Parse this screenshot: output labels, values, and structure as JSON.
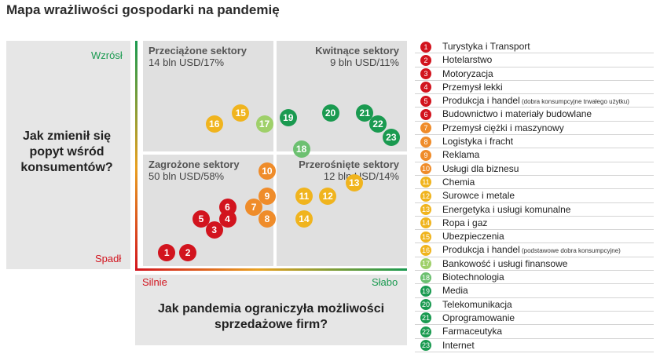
{
  "title": "Mapa wrażliwości gospodarki na pandemię",
  "colors": {
    "bg_grey": "#e6e6e6",
    "quadrant_grey": "#e0e0e0",
    "red": "#d2141e",
    "orange": "#ef8c2a",
    "yellow": "#f0b41e",
    "light_green": "#9fd06a",
    "green": "#1a9a50"
  },
  "chart_data": {
    "type": "scatter",
    "title": "Mapa wrażliwości gospodarki na pandemię",
    "ylabel": "Jak zmienił się popyt wśród konsumentów?",
    "xlabel": "Jak pandemia ograniczyła możliwości sprzedażowe firm?",
    "y_axis": {
      "high": "Wzrósł",
      "low": "Spadł"
    },
    "x_axis": {
      "low": "Silnie",
      "high": "Słabo"
    },
    "xlim": [
      0,
      100
    ],
    "ylim": [
      0,
      100
    ],
    "quadrants": [
      {
        "key": "tl",
        "title": "Przeciążone sektory",
        "value": "14 bln USD/17%"
      },
      {
        "key": "tr",
        "title": "Kwitnące sektory",
        "value": "9 bln USD/11%"
      },
      {
        "key": "bl",
        "title": "Zagrożone sektory",
        "value": "50 bln USD/58%"
      },
      {
        "key": "br",
        "title": "Przerośnięte sektory",
        "value": "12 bln USD/14%"
      }
    ],
    "points": [
      {
        "id": "1",
        "x": 9,
        "y": 6,
        "color": "#d2141e"
      },
      {
        "id": "2",
        "x": 17,
        "y": 6,
        "color": "#d2141e"
      },
      {
        "id": "3",
        "x": 27,
        "y": 16,
        "color": "#d2141e"
      },
      {
        "id": "4",
        "x": 32,
        "y": 21,
        "color": "#d2141e"
      },
      {
        "id": "5",
        "x": 22,
        "y": 21,
        "color": "#d2141e"
      },
      {
        "id": "6",
        "x": 32,
        "y": 26,
        "color": "#d2141e"
      },
      {
        "id": "7",
        "x": 42,
        "y": 26,
        "color": "#ef8c2a"
      },
      {
        "id": "8",
        "x": 47,
        "y": 21,
        "color": "#ef8c2a"
      },
      {
        "id": "9",
        "x": 47,
        "y": 31,
        "color": "#ef8c2a"
      },
      {
        "id": "10",
        "x": 47,
        "y": 42,
        "color": "#ef8c2a"
      },
      {
        "id": "11",
        "x": 61,
        "y": 31,
        "color": "#f0b41e"
      },
      {
        "id": "12",
        "x": 70,
        "y": 31,
        "color": "#f0b41e"
      },
      {
        "id": "13",
        "x": 80,
        "y": 37,
        "color": "#f0b41e"
      },
      {
        "id": "14",
        "x": 61,
        "y": 21,
        "color": "#f0b41e"
      },
      {
        "id": "15",
        "x": 37,
        "y": 68,
        "color": "#f0b41e"
      },
      {
        "id": "16",
        "x": 27,
        "y": 63,
        "color": "#f0b41e"
      },
      {
        "id": "17",
        "x": 46,
        "y": 63,
        "color": "#9fd06a"
      },
      {
        "id": "18",
        "x": 60,
        "y": 52,
        "color": "#6cc070"
      },
      {
        "id": "19",
        "x": 55,
        "y": 66,
        "color": "#1a9a50"
      },
      {
        "id": "20",
        "x": 71,
        "y": 68,
        "color": "#1a9a50"
      },
      {
        "id": "21",
        "x": 84,
        "y": 68,
        "color": "#1a9a50"
      },
      {
        "id": "22",
        "x": 89,
        "y": 63,
        "color": "#1a9a50"
      },
      {
        "id": "23",
        "x": 94,
        "y": 57,
        "color": "#1a9a50"
      }
    ]
  },
  "legend": [
    {
      "num": "1",
      "label": "Turystyka i Transport",
      "note": "",
      "color": "#d2141e"
    },
    {
      "num": "2",
      "label": "Hotelarstwo",
      "note": "",
      "color": "#d2141e"
    },
    {
      "num": "3",
      "label": "Motoryzacja",
      "note": "",
      "color": "#d2141e"
    },
    {
      "num": "4",
      "label": "Przemysł lekki",
      "note": "",
      "color": "#d2141e"
    },
    {
      "num": "5",
      "label": "Produkcja i handel",
      "note": "(dobra konsumpcyjne trwałego użytku)",
      "color": "#d2141e"
    },
    {
      "num": "6",
      "label": "Budownictwo i materiały budowlane",
      "note": "",
      "color": "#d2141e"
    },
    {
      "num": "7",
      "label": "Przemysł ciężki i maszynowy",
      "note": "",
      "color": "#ef8c2a"
    },
    {
      "num": "8",
      "label": "Logistyka i fracht",
      "note": "",
      "color": "#ef8c2a"
    },
    {
      "num": "9",
      "label": "Reklama",
      "note": "",
      "color": "#ef8c2a"
    },
    {
      "num": "10",
      "label": "Usługi dla biznesu",
      "note": "",
      "color": "#ef8c2a"
    },
    {
      "num": "11",
      "label": "Chemia",
      "note": "",
      "color": "#f0b41e"
    },
    {
      "num": "12",
      "label": "Surowce i metale",
      "note": "",
      "color": "#f0b41e"
    },
    {
      "num": "13",
      "label": "Energetyka i usługi komunalne",
      "note": "",
      "color": "#f0b41e"
    },
    {
      "num": "14",
      "label": "Ropa i gaz",
      "note": "",
      "color": "#f0b41e"
    },
    {
      "num": "15",
      "label": "Ubezpieczenia",
      "note": "",
      "color": "#f0b41e"
    },
    {
      "num": "16",
      "label": "Produkcja i handel",
      "note": "(podstawowe dobra konsumpcyjne)",
      "color": "#f0b41e"
    },
    {
      "num": "17",
      "label": "Bankowość i usługi finansowe",
      "note": "",
      "color": "#9fd06a"
    },
    {
      "num": "18",
      "label": "Biotechnologia",
      "note": "",
      "color": "#6cc070"
    },
    {
      "num": "19",
      "label": "Media",
      "note": "",
      "color": "#1a9a50"
    },
    {
      "num": "20",
      "label": "Telekomunikacja",
      "note": "",
      "color": "#1a9a50"
    },
    {
      "num": "21",
      "label": "Oprogramowanie",
      "note": "",
      "color": "#1a9a50"
    },
    {
      "num": "22",
      "label": "Farmaceutyka",
      "note": "",
      "color": "#1a9a50"
    },
    {
      "num": "23",
      "label": "Internet",
      "note": "",
      "color": "#1a9a50"
    }
  ]
}
